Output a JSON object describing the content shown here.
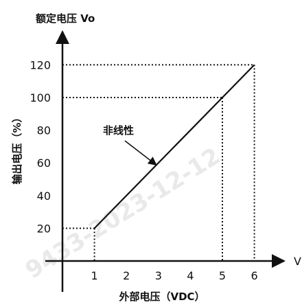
{
  "chart_data": {
    "type": "line",
    "title": "",
    "ylabel": "额定电压 Vo",
    "ylabel_side": "输出电压（%）",
    "xlabel": "外部电压（VDC）",
    "x_axis_end_label": "V",
    "x_ticks": [
      1,
      2,
      3,
      4,
      5,
      6
    ],
    "y_ticks": [
      20,
      40,
      60,
      80,
      100,
      120
    ],
    "xlim": [
      0,
      6.8
    ],
    "ylim": [
      0,
      135
    ],
    "series": [
      {
        "x": [
          1,
          6
        ],
        "y": [
          20,
          120
        ]
      }
    ],
    "guides": [
      {
        "x": 1,
        "y": 20
      },
      {
        "x": 5,
        "y": 100
      },
      {
        "x": 6,
        "y": 120
      }
    ],
    "annotation": {
      "text": "非线性",
      "points_to": {
        "x": 3,
        "y": 60
      }
    },
    "watermark": "9433-2023-12-12",
    "colors": {
      "axis": "#111111",
      "line": "#111111",
      "guide": "#111111",
      "watermark": "#e6e6e6"
    }
  }
}
